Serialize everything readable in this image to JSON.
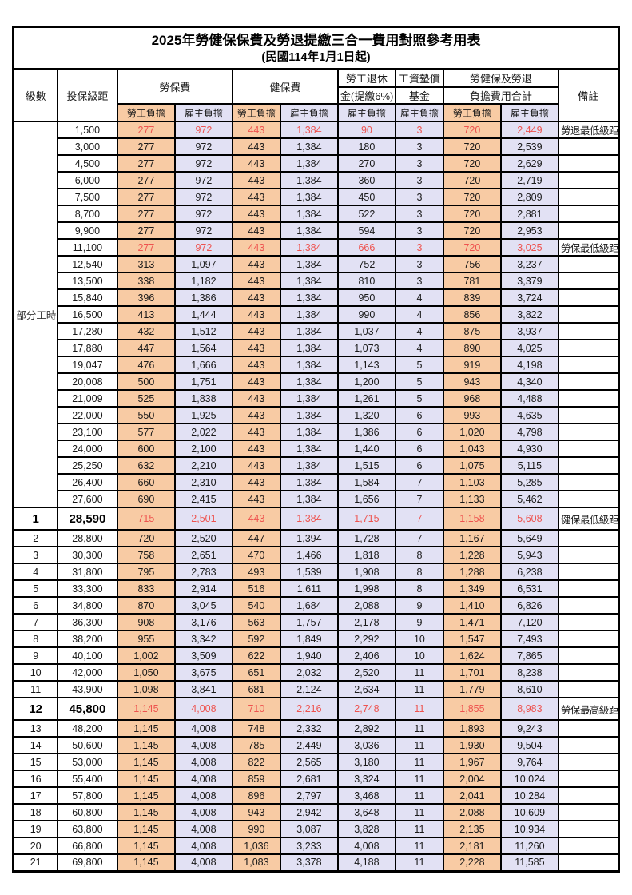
{
  "title": "2025年勞健保保費及勞退提繳三合一費用對照參考用表",
  "subtitle": "(民國114年1月1日起)",
  "colors": {
    "employee_bg": "#F8CBA4",
    "employer_bg": "#E2E1F4",
    "highlight_text": "#EE534F",
    "border": "#000000"
  },
  "header": {
    "level": "級數",
    "bracket": "投保級距",
    "labor_insurance": "勞保費",
    "health_insurance": "健保費",
    "pension_line1": "勞工退休",
    "pension_line2": "金(提繳6%)",
    "wage_fund_line1": "工資墊償",
    "wage_fund_line2": "基金",
    "total_line1": "勞健保及勞退",
    "total_line2": "負擔費用合計",
    "remark": "備註",
    "employee": "勞工負擔",
    "employer": "雇主負擔"
  },
  "part_time_label": "部分工時",
  "table": {
    "part_time_rowspan": 23,
    "rows": [
      {
        "level": "",
        "bracket": "1,500",
        "labor_emp": "277",
        "labor_er": "972",
        "health_emp": "443",
        "health_er": "1,384",
        "pension_er": "90",
        "fund_er": "3",
        "total_emp": "720",
        "total_er": "2,449",
        "remark": "勞退最低級距",
        "highlight": true,
        "big": false
      },
      {
        "level": "",
        "bracket": "3,000",
        "labor_emp": "277",
        "labor_er": "972",
        "health_emp": "443",
        "health_er": "1,384",
        "pension_er": "180",
        "fund_er": "3",
        "total_emp": "720",
        "total_er": "2,539",
        "remark": "",
        "highlight": false,
        "big": false
      },
      {
        "level": "",
        "bracket": "4,500",
        "labor_emp": "277",
        "labor_er": "972",
        "health_emp": "443",
        "health_er": "1,384",
        "pension_er": "270",
        "fund_er": "3",
        "total_emp": "720",
        "total_er": "2,629",
        "remark": "",
        "highlight": false,
        "big": false
      },
      {
        "level": "",
        "bracket": "6,000",
        "labor_emp": "277",
        "labor_er": "972",
        "health_emp": "443",
        "health_er": "1,384",
        "pension_er": "360",
        "fund_er": "3",
        "total_emp": "720",
        "total_er": "2,719",
        "remark": "",
        "highlight": false,
        "big": false
      },
      {
        "level": "",
        "bracket": "7,500",
        "labor_emp": "277",
        "labor_er": "972",
        "health_emp": "443",
        "health_er": "1,384",
        "pension_er": "450",
        "fund_er": "3",
        "total_emp": "720",
        "total_er": "2,809",
        "remark": "",
        "highlight": false,
        "big": false
      },
      {
        "level": "",
        "bracket": "8,700",
        "labor_emp": "277",
        "labor_er": "972",
        "health_emp": "443",
        "health_er": "1,384",
        "pension_er": "522",
        "fund_er": "3",
        "total_emp": "720",
        "total_er": "2,881",
        "remark": "",
        "highlight": false,
        "big": false
      },
      {
        "level": "",
        "bracket": "9,900",
        "labor_emp": "277",
        "labor_er": "972",
        "health_emp": "443",
        "health_er": "1,384",
        "pension_er": "594",
        "fund_er": "3",
        "total_emp": "720",
        "total_er": "2,953",
        "remark": "",
        "highlight": false,
        "big": false
      },
      {
        "level": "",
        "bracket": "11,100",
        "labor_emp": "277",
        "labor_er": "972",
        "health_emp": "443",
        "health_er": "1,384",
        "pension_er": "666",
        "fund_er": "3",
        "total_emp": "720",
        "total_er": "3,025",
        "remark": "勞保最低級距",
        "highlight": true,
        "big": false
      },
      {
        "level": "",
        "bracket": "12,540",
        "labor_emp": "313",
        "labor_er": "1,097",
        "health_emp": "443",
        "health_er": "1,384",
        "pension_er": "752",
        "fund_er": "3",
        "total_emp": "756",
        "total_er": "3,237",
        "remark": "",
        "highlight": false,
        "big": false
      },
      {
        "level": "",
        "bracket": "13,500",
        "labor_emp": "338",
        "labor_er": "1,182",
        "health_emp": "443",
        "health_er": "1,384",
        "pension_er": "810",
        "fund_er": "3",
        "total_emp": "781",
        "total_er": "3,379",
        "remark": "",
        "highlight": false,
        "big": false
      },
      {
        "level": "",
        "bracket": "15,840",
        "labor_emp": "396",
        "labor_er": "1,386",
        "health_emp": "443",
        "health_er": "1,384",
        "pension_er": "950",
        "fund_er": "4",
        "total_emp": "839",
        "total_er": "3,724",
        "remark": "",
        "highlight": false,
        "big": false
      },
      {
        "level": "",
        "bracket": "16,500",
        "labor_emp": "413",
        "labor_er": "1,444",
        "health_emp": "443",
        "health_er": "1,384",
        "pension_er": "990",
        "fund_er": "4",
        "total_emp": "856",
        "total_er": "3,822",
        "remark": "",
        "highlight": false,
        "big": false
      },
      {
        "level": "",
        "bracket": "17,280",
        "labor_emp": "432",
        "labor_er": "1,512",
        "health_emp": "443",
        "health_er": "1,384",
        "pension_er": "1,037",
        "fund_er": "4",
        "total_emp": "875",
        "total_er": "3,937",
        "remark": "",
        "highlight": false,
        "big": false
      },
      {
        "level": "",
        "bracket": "17,880",
        "labor_emp": "447",
        "labor_er": "1,564",
        "health_emp": "443",
        "health_er": "1,384",
        "pension_er": "1,073",
        "fund_er": "4",
        "total_emp": "890",
        "total_er": "4,025",
        "remark": "",
        "highlight": false,
        "big": false
      },
      {
        "level": "",
        "bracket": "19,047",
        "labor_emp": "476",
        "labor_er": "1,666",
        "health_emp": "443",
        "health_er": "1,384",
        "pension_er": "1,143",
        "fund_er": "5",
        "total_emp": "919",
        "total_er": "4,198",
        "remark": "",
        "highlight": false,
        "big": false
      },
      {
        "level": "",
        "bracket": "20,008",
        "labor_emp": "500",
        "labor_er": "1,751",
        "health_emp": "443",
        "health_er": "1,384",
        "pension_er": "1,200",
        "fund_er": "5",
        "total_emp": "943",
        "total_er": "4,340",
        "remark": "",
        "highlight": false,
        "big": false
      },
      {
        "level": "",
        "bracket": "21,009",
        "labor_emp": "525",
        "labor_er": "1,838",
        "health_emp": "443",
        "health_er": "1,384",
        "pension_er": "1,261",
        "fund_er": "5",
        "total_emp": "968",
        "total_er": "4,488",
        "remark": "",
        "highlight": false,
        "big": false
      },
      {
        "level": "",
        "bracket": "22,000",
        "labor_emp": "550",
        "labor_er": "1,925",
        "health_emp": "443",
        "health_er": "1,384",
        "pension_er": "1,320",
        "fund_er": "6",
        "total_emp": "993",
        "total_er": "4,635",
        "remark": "",
        "highlight": false,
        "big": false
      },
      {
        "level": "",
        "bracket": "23,100",
        "labor_emp": "577",
        "labor_er": "2,022",
        "health_emp": "443",
        "health_er": "1,384",
        "pension_er": "1,386",
        "fund_er": "6",
        "total_emp": "1,020",
        "total_er": "4,798",
        "remark": "",
        "highlight": false,
        "big": false
      },
      {
        "level": "",
        "bracket": "24,000",
        "labor_emp": "600",
        "labor_er": "2,100",
        "health_emp": "443",
        "health_er": "1,384",
        "pension_er": "1,440",
        "fund_er": "6",
        "total_emp": "1,043",
        "total_er": "4,930",
        "remark": "",
        "highlight": false,
        "big": false
      },
      {
        "level": "",
        "bracket": "25,250",
        "labor_emp": "632",
        "labor_er": "2,210",
        "health_emp": "443",
        "health_er": "1,384",
        "pension_er": "1,515",
        "fund_er": "6",
        "total_emp": "1,075",
        "total_er": "5,115",
        "remark": "",
        "highlight": false,
        "big": false
      },
      {
        "level": "",
        "bracket": "26,400",
        "labor_emp": "660",
        "labor_er": "2,310",
        "health_emp": "443",
        "health_er": "1,384",
        "pension_er": "1,584",
        "fund_er": "7",
        "total_emp": "1,103",
        "total_er": "5,285",
        "remark": "",
        "highlight": false,
        "big": false
      },
      {
        "level": "",
        "bracket": "27,600",
        "labor_emp": "690",
        "labor_er": "2,415",
        "health_emp": "443",
        "health_er": "1,384",
        "pension_er": "1,656",
        "fund_er": "7",
        "total_emp": "1,133",
        "total_er": "5,462",
        "remark": "",
        "highlight": false,
        "big": false
      },
      {
        "level": "1",
        "bracket": "28,590",
        "labor_emp": "715",
        "labor_er": "2,501",
        "health_emp": "443",
        "health_er": "1,384",
        "pension_er": "1,715",
        "fund_er": "7",
        "total_emp": "1,158",
        "total_er": "5,608",
        "remark": "健保最低級距",
        "highlight": true,
        "big": true
      },
      {
        "level": "2",
        "bracket": "28,800",
        "labor_emp": "720",
        "labor_er": "2,520",
        "health_emp": "447",
        "health_er": "1,394",
        "pension_er": "1,728",
        "fund_er": "7",
        "total_emp": "1,167",
        "total_er": "5,649",
        "remark": "",
        "highlight": false,
        "big": false
      },
      {
        "level": "3",
        "bracket": "30,300",
        "labor_emp": "758",
        "labor_er": "2,651",
        "health_emp": "470",
        "health_er": "1,466",
        "pension_er": "1,818",
        "fund_er": "8",
        "total_emp": "1,228",
        "total_er": "5,943",
        "remark": "",
        "highlight": false,
        "big": false
      },
      {
        "level": "4",
        "bracket": "31,800",
        "labor_emp": "795",
        "labor_er": "2,783",
        "health_emp": "493",
        "health_er": "1,539",
        "pension_er": "1,908",
        "fund_er": "8",
        "total_emp": "1,288",
        "total_er": "6,238",
        "remark": "",
        "highlight": false,
        "big": false
      },
      {
        "level": "5",
        "bracket": "33,300",
        "labor_emp": "833",
        "labor_er": "2,914",
        "health_emp": "516",
        "health_er": "1,611",
        "pension_er": "1,998",
        "fund_er": "8",
        "total_emp": "1,349",
        "total_er": "6,531",
        "remark": "",
        "highlight": false,
        "big": false
      },
      {
        "level": "6",
        "bracket": "34,800",
        "labor_emp": "870",
        "labor_er": "3,045",
        "health_emp": "540",
        "health_er": "1,684",
        "pension_er": "2,088",
        "fund_er": "9",
        "total_emp": "1,410",
        "total_er": "6,826",
        "remark": "",
        "highlight": false,
        "big": false
      },
      {
        "level": "7",
        "bracket": "36,300",
        "labor_emp": "908",
        "labor_er": "3,176",
        "health_emp": "563",
        "health_er": "1,757",
        "pension_er": "2,178",
        "fund_er": "9",
        "total_emp": "1,471",
        "total_er": "7,120",
        "remark": "",
        "highlight": false,
        "big": false
      },
      {
        "level": "8",
        "bracket": "38,200",
        "labor_emp": "955",
        "labor_er": "3,342",
        "health_emp": "592",
        "health_er": "1,849",
        "pension_er": "2,292",
        "fund_er": "10",
        "total_emp": "1,547",
        "total_er": "7,493",
        "remark": "",
        "highlight": false,
        "big": false
      },
      {
        "level": "9",
        "bracket": "40,100",
        "labor_emp": "1,002",
        "labor_er": "3,509",
        "health_emp": "622",
        "health_er": "1,940",
        "pension_er": "2,406",
        "fund_er": "10",
        "total_emp": "1,624",
        "total_er": "7,865",
        "remark": "",
        "highlight": false,
        "big": false
      },
      {
        "level": "10",
        "bracket": "42,000",
        "labor_emp": "1,050",
        "labor_er": "3,675",
        "health_emp": "651",
        "health_er": "2,032",
        "pension_er": "2,520",
        "fund_er": "11",
        "total_emp": "1,701",
        "total_er": "8,238",
        "remark": "",
        "highlight": false,
        "big": false
      },
      {
        "level": "11",
        "bracket": "43,900",
        "labor_emp": "1,098",
        "labor_er": "3,841",
        "health_emp": "681",
        "health_er": "2,124",
        "pension_er": "2,634",
        "fund_er": "11",
        "total_emp": "1,779",
        "total_er": "8,610",
        "remark": "",
        "highlight": false,
        "big": false
      },
      {
        "level": "12",
        "bracket": "45,800",
        "labor_emp": "1,145",
        "labor_er": "4,008",
        "health_emp": "710",
        "health_er": "2,216",
        "pension_er": "2,748",
        "fund_er": "11",
        "total_emp": "1,855",
        "total_er": "8,983",
        "remark": "勞保最高級距",
        "highlight": true,
        "big": true
      },
      {
        "level": "13",
        "bracket": "48,200",
        "labor_emp": "1,145",
        "labor_er": "4,008",
        "health_emp": "748",
        "health_er": "2,332",
        "pension_er": "2,892",
        "fund_er": "11",
        "total_emp": "1,893",
        "total_er": "9,243",
        "remark": "",
        "highlight": false,
        "big": false
      },
      {
        "level": "14",
        "bracket": "50,600",
        "labor_emp": "1,145",
        "labor_er": "4,008",
        "health_emp": "785",
        "health_er": "2,449",
        "pension_er": "3,036",
        "fund_er": "11",
        "total_emp": "1,930",
        "total_er": "9,504",
        "remark": "",
        "highlight": false,
        "big": false
      },
      {
        "level": "15",
        "bracket": "53,000",
        "labor_emp": "1,145",
        "labor_er": "4,008",
        "health_emp": "822",
        "health_er": "2,565",
        "pension_er": "3,180",
        "fund_er": "11",
        "total_emp": "1,967",
        "total_er": "9,764",
        "remark": "",
        "highlight": false,
        "big": false
      },
      {
        "level": "16",
        "bracket": "55,400",
        "labor_emp": "1,145",
        "labor_er": "4,008",
        "health_emp": "859",
        "health_er": "2,681",
        "pension_er": "3,324",
        "fund_er": "11",
        "total_emp": "2,004",
        "total_er": "10,024",
        "remark": "",
        "highlight": false,
        "big": false
      },
      {
        "level": "17",
        "bracket": "57,800",
        "labor_emp": "1,145",
        "labor_er": "4,008",
        "health_emp": "896",
        "health_er": "2,797",
        "pension_er": "3,468",
        "fund_er": "11",
        "total_emp": "2,041",
        "total_er": "10,284",
        "remark": "",
        "highlight": false,
        "big": false
      },
      {
        "level": "18",
        "bracket": "60,800",
        "labor_emp": "1,145",
        "labor_er": "4,008",
        "health_emp": "943",
        "health_er": "2,942",
        "pension_er": "3,648",
        "fund_er": "11",
        "total_emp": "2,088",
        "total_er": "10,609",
        "remark": "",
        "highlight": false,
        "big": false
      },
      {
        "level": "19",
        "bracket": "63,800",
        "labor_emp": "1,145",
        "labor_er": "4,008",
        "health_emp": "990",
        "health_er": "3,087",
        "pension_er": "3,828",
        "fund_er": "11",
        "total_emp": "2,135",
        "total_er": "10,934",
        "remark": "",
        "highlight": false,
        "big": false
      },
      {
        "level": "20",
        "bracket": "66,800",
        "labor_emp": "1,145",
        "labor_er": "4,008",
        "health_emp": "1,036",
        "health_er": "3,233",
        "pension_er": "4,008",
        "fund_er": "11",
        "total_emp": "2,181",
        "total_er": "11,260",
        "remark": "",
        "highlight": false,
        "big": false
      },
      {
        "level": "21",
        "bracket": "69,800",
        "labor_emp": "1,145",
        "labor_er": "4,008",
        "health_emp": "1,083",
        "health_er": "3,378",
        "pension_er": "4,188",
        "fund_er": "11",
        "total_emp": "2,228",
        "total_er": "11,585",
        "remark": "",
        "highlight": false,
        "big": false
      }
    ]
  }
}
